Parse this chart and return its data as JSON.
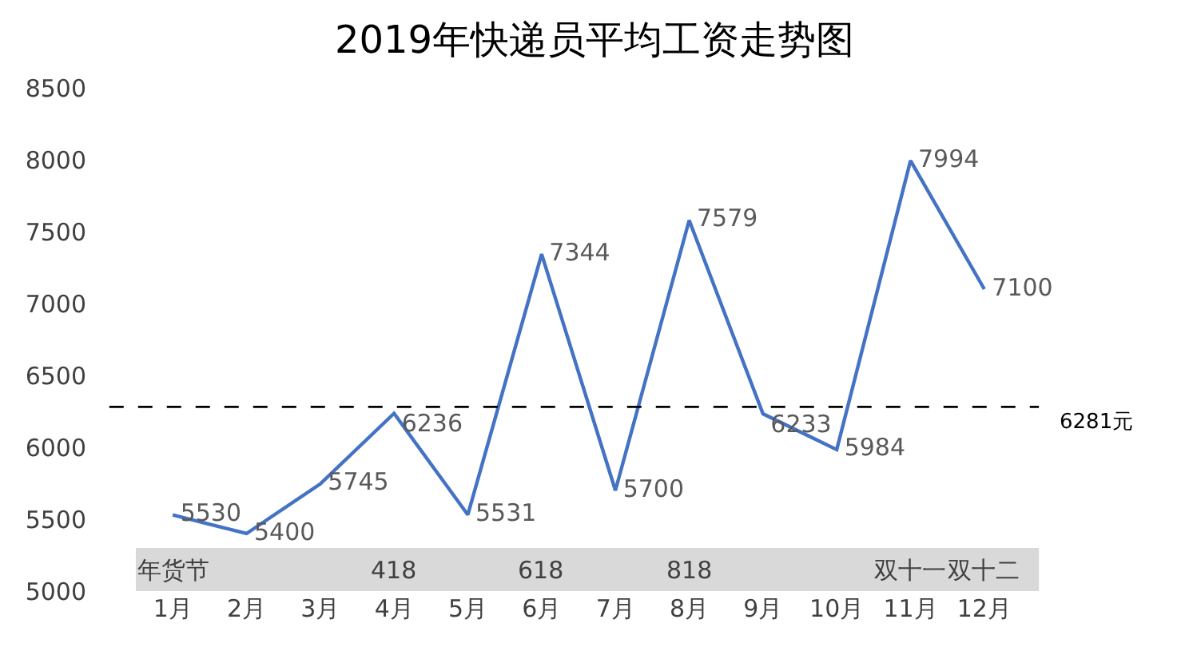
{
  "chart_data": {
    "type": "line",
    "title": "2019年快递员平均工资走势图",
    "categories": [
      "1月",
      "2月",
      "3月",
      "4月",
      "5月",
      "6月",
      "7月",
      "8月",
      "9月",
      "10月",
      "11月",
      "12月"
    ],
    "series": [
      {
        "color": "#4472c4",
        "values": [
          5530,
          5400,
          5745,
          6236,
          5531,
          7344,
          5700,
          7579,
          6233,
          5984,
          7994,
          7100
        ]
      }
    ],
    "ylim": [
      5000,
      8500
    ],
    "yticks": [
      5000,
      5500,
      6000,
      6500,
      7000,
      7500,
      8000,
      8500
    ],
    "grid": false,
    "marker": "none",
    "line_style": "solid",
    "data_labels": true,
    "ref_lines": [
      {
        "axis": "y",
        "value": 6281,
        "label": "6281元",
        "color": "#000000",
        "line_style": "dashed"
      }
    ],
    "bands": [
      {
        "axis": "y",
        "from": 5000,
        "to": 5300,
        "color": "#d9d9d9"
      }
    ],
    "annotations": [
      "年货节",
      "418",
      "618",
      "818",
      "双十一",
      "双十二"
    ]
  }
}
